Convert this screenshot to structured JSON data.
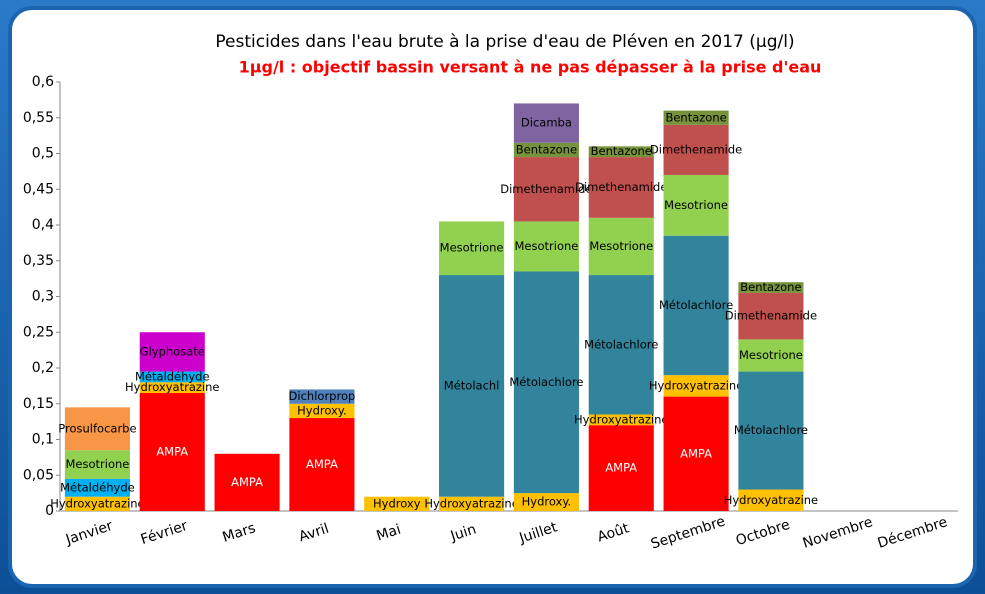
{
  "chart_data": {
    "type": "stacked_bar_labeled",
    "title": "Pesticides dans l'eau brute à la prise d'eau de Pléven en 2017 (µg/l)",
    "subtitle": "1µg/l : objectif bassin versant à ne pas dépasser à la prise d'eau",
    "categories": [
      "Janvier",
      "Février",
      "Mars",
      "Avril",
      "Mai",
      "Juin",
      "Juillet",
      "Août",
      "Septembre",
      "Octobre",
      "Novembre",
      "Décembre"
    ],
    "ylim": [
      0,
      0.6
    ],
    "yticks": [
      0,
      {
        "value": 0.05,
        "label": "0,05"
      },
      {
        "value": 0.1,
        "label": "0,1"
      },
      {
        "value": 0.15,
        "label": "0,15"
      },
      {
        "value": 0.2,
        "label": "0,2"
      },
      {
        "value": 0.25,
        "label": "0,25"
      },
      {
        "value": 0.3,
        "label": "0,3"
      },
      {
        "value": 0.35,
        "label": "0,35"
      },
      {
        "value": 0.4,
        "label": "0,4"
      },
      {
        "value": 0.45,
        "label": "0,45"
      },
      {
        "value": 0.5,
        "label": "0,5"
      },
      {
        "value": 0.55,
        "label": "0,55"
      },
      {
        "value": 0.6,
        "label": "0,6"
      }
    ],
    "stacks": [
      [
        {
          "label": "Hydroxyatrazine",
          "value": 0.02,
          "color": "#ffc000"
        },
        {
          "label": "Métaldéhyde",
          "value": 0.025,
          "color": "#00b0f0"
        },
        {
          "label": "Mesotrione",
          "value": 0.04,
          "color": "#92d050"
        },
        {
          "label": "Prosulfocarbe",
          "value": 0.06,
          "color": "#f79646"
        }
      ],
      [
        {
          "label": "AMPA",
          "value": 0.165,
          "color": "#ff0000"
        },
        {
          "label": "Hydroxyatrazine",
          "value": 0.015,
          "color": "#ffc000"
        },
        {
          "label": "Métaldéhyde",
          "value": 0.015,
          "color": "#00b0f0"
        },
        {
          "label": "Glyphosate",
          "value": 0.055,
          "color": "#cc00cc"
        }
      ],
      [
        {
          "label": "AMPA",
          "value": 0.08,
          "color": "#ff0000"
        }
      ],
      [
        {
          "label": "AMPA",
          "value": 0.13,
          "color": "#ff0000"
        },
        {
          "label": "Hydroxy.",
          "value": 0.02,
          "color": "#ffc000"
        },
        {
          "label": "Dichlorprop",
          "value": 0.02,
          "color": "#4f81bd"
        }
      ],
      [
        {
          "label": "Hydroxy",
          "value": 0.02,
          "color": "#ffc000"
        }
      ],
      [
        {
          "label": "Hydroxyatrazine",
          "value": 0.02,
          "color": "#ffc000"
        },
        {
          "label": "Métolachl",
          "value": 0.31,
          "color": "#31849b"
        },
        {
          "label": "Mesotrione",
          "value": 0.075,
          "color": "#92d050"
        }
      ],
      [
        {
          "label": "Hydroxy.",
          "value": 0.025,
          "color": "#ffc000"
        },
        {
          "label": "Métolachlore",
          "value": 0.31,
          "color": "#31849b"
        },
        {
          "label": "Mesotrione",
          "value": 0.07,
          "color": "#92d050"
        },
        {
          "label": "Dimethenamide",
          "value": 0.09,
          "color": "#c0504d"
        },
        {
          "label": "Bentazone",
          "value": 0.02,
          "color": "#77933c"
        },
        {
          "label": "Dicamba",
          "value": 0.055,
          "color": "#8064a2"
        }
      ],
      [
        {
          "label": "AMPA",
          "value": 0.12,
          "color": "#ff0000"
        },
        {
          "label": "Hydroxyatrazine",
          "value": 0.015,
          "color": "#ffc000"
        },
        {
          "label": "Métolachlore",
          "value": 0.195,
          "color": "#31849b"
        },
        {
          "label": "Mesotrione",
          "value": 0.08,
          "color": "#92d050"
        },
        {
          "label": "Dimethenamide",
          "value": 0.085,
          "color": "#c0504d"
        },
        {
          "label": "Bentazone",
          "value": 0.015,
          "color": "#77933c"
        }
      ],
      [
        {
          "label": "AMPA",
          "value": 0.16,
          "color": "#ff0000"
        },
        {
          "label": "Hydroxyatrazine",
          "value": 0.03,
          "color": "#ffc000"
        },
        {
          "label": "Métolachlore",
          "value": 0.195,
          "color": "#31849b"
        },
        {
          "label": "Mesotrione",
          "value": 0.085,
          "color": "#92d050"
        },
        {
          "label": "Dimethenamide",
          "value": 0.07,
          "color": "#c0504d"
        },
        {
          "label": "Bentazone",
          "value": 0.02,
          "color": "#77933c"
        }
      ],
      [
        {
          "label": "Hydroxyatrazine",
          "value": 0.03,
          "color": "#ffc000"
        },
        {
          "label": "Métolachlore",
          "value": 0.165,
          "color": "#31849b"
        },
        {
          "label": "Mesotrione",
          "value": 0.045,
          "color": "#92d050"
        },
        {
          "label": "Dimethenamide",
          "value": 0.065,
          "color": "#c0504d"
        },
        {
          "label": "Bentazone",
          "value": 0.015,
          "color": "#77933c"
        }
      ],
      [],
      []
    ]
  }
}
